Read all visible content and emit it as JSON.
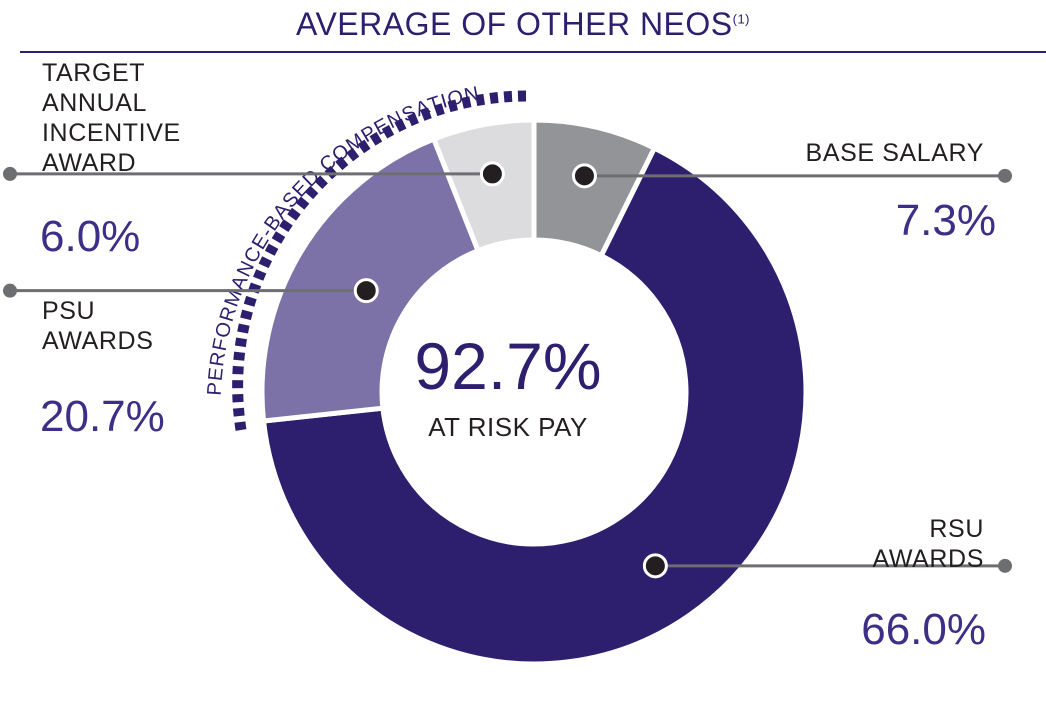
{
  "title": {
    "text": "AVERAGE OF OTHER NEOS",
    "footnote": "(1)"
  },
  "chart_data": {
    "type": "pie",
    "title": "AVERAGE OF OTHER NEOS(1)",
    "categories": [
      "BASE SALARY",
      "RSU AWARDS",
      "PSU AWARDS",
      "TARGET ANNUAL INCENTIVE AWARD"
    ],
    "values": [
      7.3,
      66.0,
      20.7,
      6.0
    ],
    "value_labels": [
      "7.3%",
      "66.0%",
      "20.7%",
      "6.0%"
    ],
    "colors": [
      "#929497",
      "#2e1f6e",
      "#7c72a8",
      "#dcdcde"
    ],
    "center": {
      "value": "92.7%",
      "label": "AT RISK PAY"
    },
    "bracket_label": "PERFORMANCE-BASED COMPENSATION"
  },
  "labels": {
    "base_salary": {
      "name": "BASE SALARY",
      "pct": "7.3%"
    },
    "rsu": {
      "line1": "RSU",
      "line2": "AWARDS",
      "pct": "66.0%"
    },
    "psu": {
      "line1": "PSU",
      "line2": "AWARDS",
      "pct": "20.7%"
    },
    "annual": {
      "line1": "TARGET",
      "line2": "ANNUAL",
      "line3": "INCENTIVE",
      "line4": "AWARD",
      "pct": "6.0%"
    }
  },
  "colors": {
    "accent": "#2e1f6e",
    "leader": "#6d6e71",
    "dot": "#231f20"
  }
}
